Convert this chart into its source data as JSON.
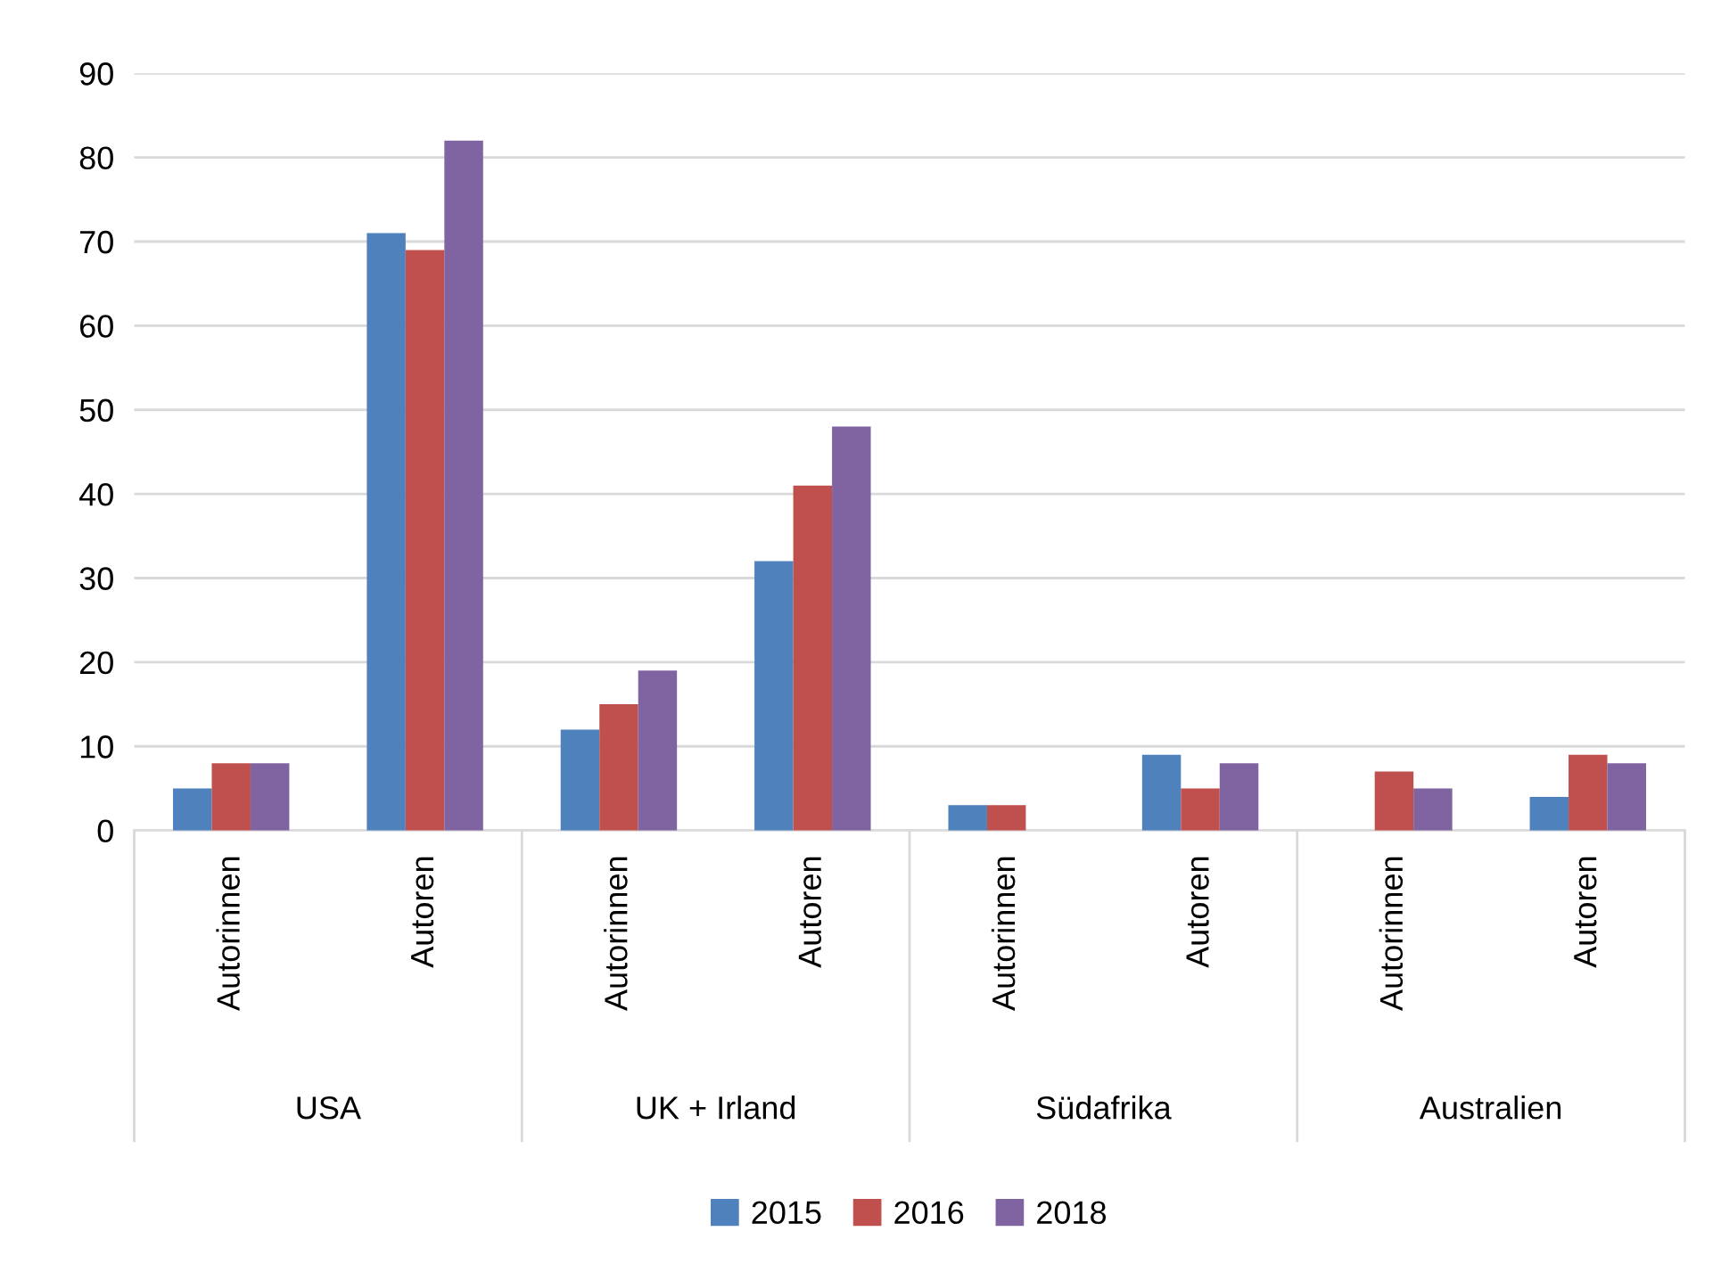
{
  "chart_data": {
    "type": "bar",
    "categories": [
      "Autorinnen",
      "Autoren",
      "Autorinnen",
      "Autoren",
      "Autorinnen",
      "Autoren",
      "Autorinnen",
      "Autoren"
    ],
    "annotations": [
      "USA",
      "UK + Irland",
      "Südafrika",
      "Australien"
    ],
    "series": [
      {
        "name": "2015",
        "color": "#4f81bd",
        "values": [
          5,
          71,
          12,
          32,
          3,
          9,
          null,
          4
        ]
      },
      {
        "name": "2016",
        "color": "#c0504d",
        "values": [
          8,
          69,
          15,
          41,
          3,
          5,
          7,
          9
        ]
      },
      {
        "name": "2018",
        "color": "#8064a2",
        "values": [
          8,
          82,
          19,
          48,
          null,
          8,
          5,
          8
        ]
      }
    ],
    "ylim": [
      0,
      90
    ],
    "yticks": [
      0,
      10,
      20,
      30,
      40,
      50,
      60,
      70,
      80,
      90
    ],
    "grid": "y",
    "legend": "bottom"
  }
}
